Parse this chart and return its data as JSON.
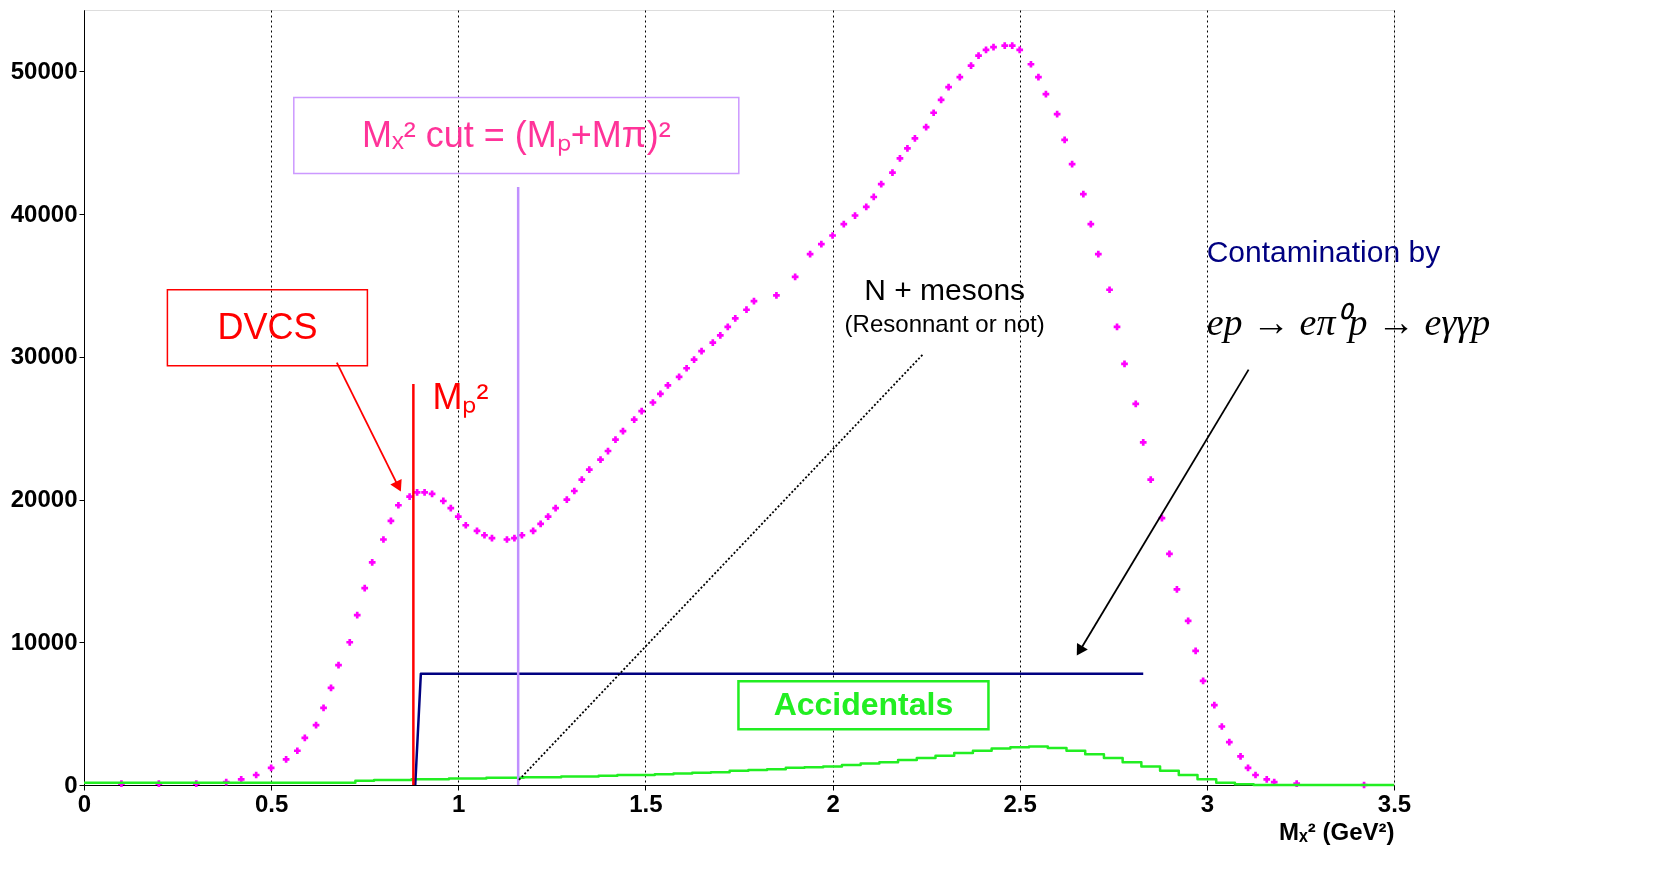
{
  "chart_data": {
    "type": "scatter",
    "xlabel": "Mₓ² (GeV²)",
    "xlim": [
      0,
      3.5
    ],
    "ylim": [
      0,
      54300
    ],
    "xticks": [
      0,
      0.5,
      1,
      1.5,
      2,
      2.5,
      3,
      3.5
    ],
    "yticks": [
      0,
      10000,
      20000,
      30000,
      40000,
      50000
    ],
    "grid": "x",
    "series": [
      {
        "marker": "cross",
        "color": "#ff00ff",
        "x": [
          0.1,
          0.2,
          0.3,
          0.38,
          0.42,
          0.46,
          0.5,
          0.54,
          0.57,
          0.59,
          0.62,
          0.64,
          0.66,
          0.68,
          0.71,
          0.73,
          0.75,
          0.77,
          0.8,
          0.82,
          0.84,
          0.87,
          0.89,
          0.91,
          0.93,
          0.96,
          0.98,
          1.0,
          1.02,
          1.05,
          1.07,
          1.09,
          1.13,
          1.15,
          1.17,
          1.2,
          1.22,
          1.24,
          1.26,
          1.29,
          1.31,
          1.33,
          1.35,
          1.38,
          1.4,
          1.42,
          1.44,
          1.47,
          1.49,
          1.52,
          1.54,
          1.56,
          1.59,
          1.61,
          1.63,
          1.65,
          1.68,
          1.7,
          1.72,
          1.74,
          1.77,
          1.79,
          1.85,
          1.9,
          1.94,
          1.97,
          2.0,
          2.03,
          2.06,
          2.09,
          2.11,
          2.13,
          2.16,
          2.18,
          2.2,
          2.22,
          2.25,
          2.27,
          2.29,
          2.31,
          2.34,
          2.37,
          2.39,
          2.41,
          2.43,
          2.46,
          2.48,
          2.5,
          2.53,
          2.55,
          2.57,
          2.6,
          2.62,
          2.64,
          2.67,
          2.69,
          2.71,
          2.74,
          2.76,
          2.78,
          2.81,
          2.83,
          2.85,
          2.88,
          2.9,
          2.92,
          2.95,
          2.97,
          2.99,
          3.02,
          3.04,
          3.06,
          3.09,
          3.11,
          3.13,
          3.16,
          3.18,
          3.24,
          3.42
        ],
        "values": [
          100,
          100,
          100,
          200,
          400,
          700,
          1200,
          1800,
          2400,
          3300,
          4200,
          5400,
          6800,
          8400,
          10000,
          11900,
          13800,
          15600,
          17200,
          18500,
          19600,
          20200,
          20500,
          20500,
          20400,
          19900,
          19400,
          18800,
          18200,
          17800,
          17500,
          17300,
          17200,
          17300,
          17500,
          17800,
          18300,
          18800,
          19400,
          20000,
          20600,
          21400,
          22100,
          22800,
          23400,
          24200,
          24800,
          25600,
          26200,
          26800,
          27400,
          28000,
          28600,
          29200,
          29800,
          30400,
          31000,
          31500,
          32100,
          32700,
          33300,
          33900,
          34300,
          35600,
          37200,
          37900,
          38500,
          39300,
          39900,
          40500,
          41200,
          42100,
          42900,
          43900,
          44600,
          45300,
          46100,
          47100,
          48000,
          48900,
          49600,
          50400,
          51100,
          51500,
          51700,
          51800,
          51800,
          51500,
          50500,
          49600,
          48400,
          47000,
          45200,
          43500,
          41400,
          39300,
          37200,
          34700,
          32100,
          29500,
          26700,
          24000,
          21400,
          18700,
          16200,
          13700,
          11500,
          9400,
          7300,
          5600,
          4100,
          3000,
          2000,
          1200,
          700,
          400,
          200,
          100,
          0
        ]
      },
      {
        "type": "step",
        "name": "Accidentals",
        "color": "#22ee22",
        "line_style": "solid",
        "x": [
          0,
          0.05,
          0.1,
          0.15,
          0.2,
          0.25,
          0.3,
          0.35,
          0.4,
          0.45,
          0.5,
          0.55,
          0.6,
          0.65,
          0.7,
          0.75,
          0.8,
          0.85,
          0.9,
          0.95,
          1.0,
          1.05,
          1.1,
          1.15,
          1.2,
          1.25,
          1.3,
          1.35,
          1.4,
          1.45,
          1.5,
          1.55,
          1.6,
          1.65,
          1.7,
          1.75,
          1.8,
          1.85,
          1.9,
          1.95,
          2.0,
          2.05,
          2.1,
          2.15,
          2.2,
          2.25,
          2.3,
          2.35,
          2.4,
          2.45,
          2.5,
          2.55,
          2.6,
          2.65,
          2.7,
          2.75,
          2.8,
          2.85,
          2.9,
          2.95,
          3.0,
          3.05,
          3.1,
          3.15,
          3.2,
          3.3,
          3.4,
          3.5
        ],
        "values": [
          150,
          150,
          150,
          150,
          150,
          150,
          150,
          150,
          150,
          150,
          150,
          150,
          150,
          150,
          150,
          300,
          350,
          350,
          400,
          400,
          450,
          450,
          500,
          500,
          550,
          550,
          600,
          600,
          650,
          700,
          700,
          750,
          800,
          850,
          900,
          1000,
          1050,
          1100,
          1200,
          1250,
          1300,
          1400,
          1500,
          1600,
          1750,
          1900,
          2050,
          2250,
          2400,
          2550,
          2650,
          2700,
          2600,
          2400,
          2150,
          1900,
          1600,
          1300,
          1000,
          700,
          400,
          150,
          50,
          0,
          0,
          0,
          0,
          0
        ]
      },
      {
        "type": "line",
        "color": "#000080",
        "line_style": "solid",
        "x": [
          0.885,
          0.9,
          2.83
        ],
        "values": [
          0,
          7800,
          7800
        ]
      },
      {
        "type": "line",
        "color": "#ff0000",
        "line_style": "solid",
        "x": [
          0.88,
          0.88
        ],
        "values": [
          0,
          28100
        ]
      },
      {
        "type": "line",
        "color": "#c090ff",
        "line_style": "solid",
        "x": [
          1.16,
          1.16
        ],
        "values": [
          0,
          41900
        ]
      }
    ],
    "annotations": [
      "DVCS",
      "Mₚ²",
      "Mₓ² cut = (Mₚ+Mπ)²",
      "N + mesons",
      {
        "text": "(Resonnant or not)",
        "x": 1.16,
        "y": 300
      },
      "Contamination by",
      "ep → eπ⁰p → eγγp"
    ]
  }
}
